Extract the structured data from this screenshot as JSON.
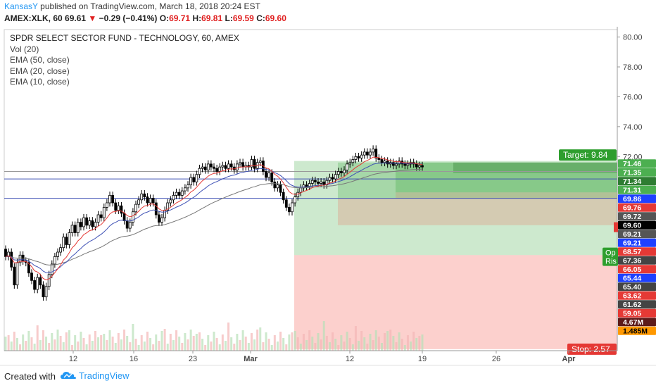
{
  "header": {
    "author": "KansasY",
    "published": "published on TradingView.com, March 18, 2018 20:24 EST",
    "symbol": "AMEX:XLK, 60",
    "last": "69.61",
    "change": "−0.29 (−0.41%)",
    "open_label": "O:",
    "open": "69.71",
    "high_label": "H:",
    "high": "69.81",
    "low_label": "L:",
    "low": "69.59",
    "close_label": "C:",
    "close": "69.60"
  },
  "legend": {
    "title": "SPDR SELECT SECTOR FUND - TECHNOLOGY, 60, AMEX",
    "items": [
      "Vol (20)",
      "EMA (50, close)",
      "EMA (20, close)",
      "EMA (10, close)"
    ]
  },
  "footer": {
    "created": "Created with",
    "brand": "TradingView"
  },
  "colors": {
    "candle": "#000000",
    "ema10": "#e53935",
    "ema20": "#3f51b5",
    "ema50": "#777777",
    "target_zone": "#4caf50",
    "stop_zone": "#f44336",
    "hline": "#3f51b5"
  },
  "chart_data": {
    "type": "candlestick",
    "title": "SPDR SELECT SECTOR FUND - TECHNOLOGY, 60, AMEX",
    "ylim": [
      59.0,
      80.5
    ],
    "y_ticks": [
      "80.00",
      "78.00",
      "76.00",
      "74.00",
      "72.00"
    ],
    "x_ticks": [
      "12",
      "16",
      "23",
      "Mar",
      "12",
      "19",
      "26",
      "Apr"
    ],
    "price_series": [
      [
        65.8,
        65.3
      ],
      [
        65.3,
        65.6
      ],
      [
        65.6,
        64.6
      ],
      [
        64.6,
        63.4
      ],
      [
        63.4,
        64.9
      ],
      [
        64.9,
        65.4
      ],
      [
        65.4,
        65.0
      ],
      [
        65.0,
        64.9
      ],
      [
        64.9,
        64.2
      ],
      [
        64.2,
        63.7
      ],
      [
        63.7,
        63.1
      ],
      [
        63.1,
        63.9
      ],
      [
        63.9,
        63.4
      ],
      [
        63.4,
        62.6
      ],
      [
        62.6,
        63.3
      ],
      [
        63.3,
        64.1
      ],
      [
        64.1,
        64.8
      ],
      [
        64.8,
        65.3
      ],
      [
        65.3,
        65.6
      ],
      [
        65.6,
        65.9
      ],
      [
        65.9,
        66.6
      ],
      [
        66.6,
        66.1
      ],
      [
        66.1,
        66.9
      ],
      [
        66.9,
        67.4
      ],
      [
        67.4,
        66.9
      ],
      [
        66.9,
        67.6
      ],
      [
        67.6,
        67.3
      ],
      [
        67.3,
        67.9
      ],
      [
        67.9,
        67.4
      ],
      [
        67.4,
        67.7
      ],
      [
        67.7,
        67.3
      ],
      [
        67.3,
        67.6
      ],
      [
        67.6,
        68.1
      ],
      [
        68.1,
        67.9
      ],
      [
        67.9,
        68.6
      ],
      [
        68.6,
        68.9
      ],
      [
        68.9,
        69.4
      ],
      [
        69.4,
        68.9
      ],
      [
        68.9,
        68.4
      ],
      [
        68.4,
        68.7
      ],
      [
        68.7,
        68.2
      ],
      [
        68.2,
        67.7
      ],
      [
        67.7,
        67.2
      ],
      [
        67.2,
        67.6
      ],
      [
        67.6,
        68.3
      ],
      [
        68.3,
        68.8
      ],
      [
        68.8,
        69.1
      ],
      [
        69.1,
        69.5
      ],
      [
        69.5,
        69.3
      ],
      [
        69.3,
        68.9
      ],
      [
        68.9,
        69.2
      ],
      [
        69.2,
        68.9
      ],
      [
        68.9,
        68.1
      ],
      [
        68.1,
        67.6
      ],
      [
        67.6,
        67.9
      ],
      [
        67.9,
        68.4
      ],
      [
        68.4,
        68.9
      ],
      [
        68.9,
        69.1
      ],
      [
        69.1,
        69.4
      ],
      [
        69.4,
        69.6
      ],
      [
        69.6,
        69.4
      ],
      [
        69.4,
        69.7
      ],
      [
        69.7,
        69.9
      ],
      [
        69.9,
        70.1
      ],
      [
        70.1,
        70.6
      ],
      [
        70.6,
        70.3
      ],
      [
        70.3,
        70.8
      ],
      [
        70.8,
        71.2
      ],
      [
        71.2,
        71.3
      ],
      [
        71.3,
        71.1
      ],
      [
        71.1,
        71.5
      ],
      [
        71.5,
        71.3
      ],
      [
        71.3,
        71.2
      ],
      [
        71.2,
        71.0
      ],
      [
        71.0,
        71.3
      ],
      [
        71.3,
        71.4
      ],
      [
        71.4,
        71.2
      ],
      [
        71.2,
        71.5
      ],
      [
        71.5,
        71.3
      ],
      [
        71.3,
        71.1
      ],
      [
        71.1,
        71.5
      ],
      [
        71.5,
        71.6
      ],
      [
        71.6,
        71.3
      ],
      [
        71.3,
        71.4
      ],
      [
        71.4,
        71.3
      ],
      [
        71.3,
        71.8
      ],
      [
        71.8,
        71.2
      ],
      [
        71.2,
        71.6
      ],
      [
        71.6,
        71.7
      ],
      [
        71.7,
        71.0
      ],
      [
        71.0,
        70.6
      ],
      [
        70.6,
        70.9
      ],
      [
        70.9,
        70.3
      ],
      [
        70.3,
        69.9
      ],
      [
        69.9,
        70.1
      ],
      [
        70.1,
        69.6
      ],
      [
        69.6,
        69.1
      ],
      [
        69.1,
        68.6
      ],
      [
        68.6,
        68.3
      ],
      [
        68.3,
        68.9
      ],
      [
        68.9,
        69.3
      ],
      [
        69.3,
        69.6
      ],
      [
        69.6,
        69.9
      ],
      [
        69.9,
        70.1
      ],
      [
        70.1,
        70.0
      ],
      [
        70.0,
        70.2
      ],
      [
        70.2,
        70.4
      ],
      [
        70.4,
        70.3
      ],
      [
        70.3,
        70.2
      ],
      [
        70.2,
        70.3
      ],
      [
        70.3,
        70.1
      ],
      [
        70.1,
        70.4
      ],
      [
        70.4,
        70.6
      ],
      [
        70.6,
        70.5
      ],
      [
        70.5,
        70.8
      ],
      [
        70.8,
        71.0
      ],
      [
        71.0,
        70.9
      ],
      [
        70.9,
        71.1
      ],
      [
        71.1,
        71.5
      ],
      [
        71.5,
        71.6
      ],
      [
        71.6,
        71.8
      ],
      [
        71.8,
        72.0
      ],
      [
        72.0,
        71.9
      ],
      [
        71.9,
        72.1
      ],
      [
        72.1,
        72.3
      ],
      [
        72.3,
        72.1
      ],
      [
        72.1,
        72.3
      ],
      [
        72.3,
        72.5
      ],
      [
        72.5,
        71.9
      ],
      [
        71.9,
        71.8
      ],
      [
        71.8,
        71.6
      ],
      [
        71.6,
        71.7
      ],
      [
        71.7,
        71.5
      ],
      [
        71.5,
        71.6
      ],
      [
        71.6,
        71.4
      ],
      [
        71.4,
        71.5
      ],
      [
        71.5,
        71.7
      ],
      [
        71.7,
        71.5
      ],
      [
        71.5,
        71.4
      ],
      [
        71.4,
        71.5
      ],
      [
        71.5,
        71.6
      ],
      [
        71.6,
        71.5
      ],
      [
        71.5,
        71.3
      ],
      [
        71.3,
        71.4
      ],
      [
        71.4,
        71.3
      ]
    ],
    "price_labels": [
      {
        "value": "71.46",
        "bg": "#4caf50",
        "fg": "#ffffff",
        "y": 71.46
      },
      {
        "value": "71.35",
        "bg": "#4caf50",
        "fg": "#ffffff",
        "y": 71.35
      },
      {
        "value": "71.34",
        "bg": "#2e7d32",
        "fg": "#ffffff",
        "y": 71.34
      },
      {
        "value": "71.31",
        "bg": "#4caf50",
        "fg": "#ffffff",
        "y": 71.31
      },
      {
        "value": "69.86",
        "bg": "#1e40ff",
        "fg": "#ffffff",
        "y": 69.86
      },
      {
        "value": "69.76",
        "bg": "#e53935",
        "fg": "#ffffff",
        "y": 69.76
      },
      {
        "value": "69.72",
        "bg": "#555555",
        "fg": "#ffffff",
        "y": 69.72
      },
      {
        "value": "69.60",
        "bg": "#000000",
        "fg": "#ffffff",
        "y": 69.6
      },
      {
        "value": "69.21",
        "bg": "#555555",
        "fg": "#ffffff",
        "y": 69.21
      },
      {
        "value": "69.21",
        "bg": "#1e40ff",
        "fg": "#ffffff",
        "y": 69.21
      },
      {
        "value": "68.57",
        "bg": "#e53935",
        "fg": "#ffffff",
        "y": 68.57
      },
      {
        "value": "67.36",
        "bg": "#444444",
        "fg": "#ffffff",
        "y": 67.36
      },
      {
        "value": "66.05",
        "bg": "#e53935",
        "fg": "#ffffff",
        "y": 66.05
      },
      {
        "value": "65.44",
        "bg": "#1e40ff",
        "fg": "#ffffff",
        "y": 65.44
      },
      {
        "value": "65.40",
        "bg": "#444444",
        "fg": "#ffffff",
        "y": 65.4
      },
      {
        "value": "63.62",
        "bg": "#e53935",
        "fg": "#ffffff",
        "y": 63.62
      },
      {
        "value": "61.62",
        "bg": "#444444",
        "fg": "#ffffff",
        "y": 61.62
      },
      {
        "value": "59.05",
        "bg": "#e53935",
        "fg": "#ffffff",
        "y": 59.05
      },
      {
        "value": "4.67M",
        "bg": "#5d1a1a",
        "fg": "#ffffff",
        "y": 58.4
      },
      {
        "value": "1.485M",
        "bg": "#ff9800",
        "fg": "#000000",
        "y": 57.6
      }
    ],
    "target_label": "Target: 9.84",
    "stop_label": "Stop: 2.57",
    "side_label_1": "Op",
    "side_label_2": "Ris"
  }
}
